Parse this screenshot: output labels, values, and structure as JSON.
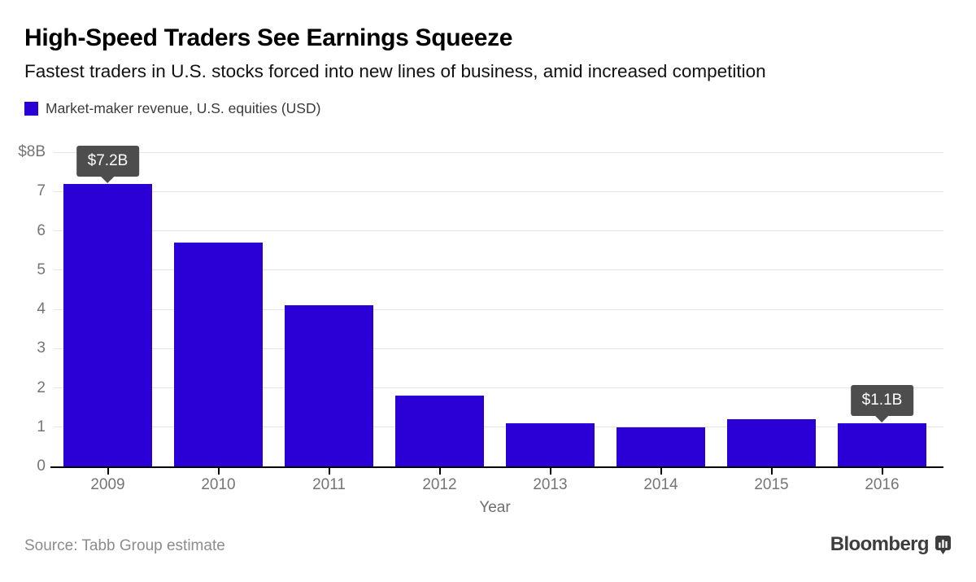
{
  "header": {
    "title": "High-Speed Traders See Earnings Squeeze",
    "subtitle": "Fastest traders in U.S. stocks forced into new lines of business, amid increased competition"
  },
  "legend": {
    "label": "Market-maker revenue, U.S. equities (USD)",
    "swatch_color": "#2B00D6"
  },
  "chart_data": {
    "type": "bar",
    "title": "Market-maker revenue, U.S. equities (USD)",
    "categories": [
      "2009",
      "2010",
      "2011",
      "2012",
      "2013",
      "2014",
      "2015",
      "2016"
    ],
    "values": [
      7.2,
      5.7,
      4.1,
      1.8,
      1.1,
      1.0,
      1.2,
      1.1
    ],
    "xlabel": "Year",
    "ylabel": "",
    "ylim": [
      0,
      8
    ],
    "y_ticks": [
      0,
      1,
      2,
      3,
      4,
      5,
      6,
      7,
      8
    ],
    "y_top_label": "$8B",
    "grid": true,
    "legend_position": "top-left",
    "annotations": [
      {
        "index": 0,
        "label": "$7.2B"
      },
      {
        "index": 7,
        "label": "$1.1B"
      }
    ]
  },
  "colors": {
    "bar": "#2B00D6",
    "tooltip_bg": "#4d4d4d",
    "grid_line": "#e3e3e3",
    "baseline": "#000000",
    "axis_text": "#757575"
  },
  "footer": {
    "source": "Source: Tabb Group estimate",
    "brand": "Bloomberg"
  }
}
